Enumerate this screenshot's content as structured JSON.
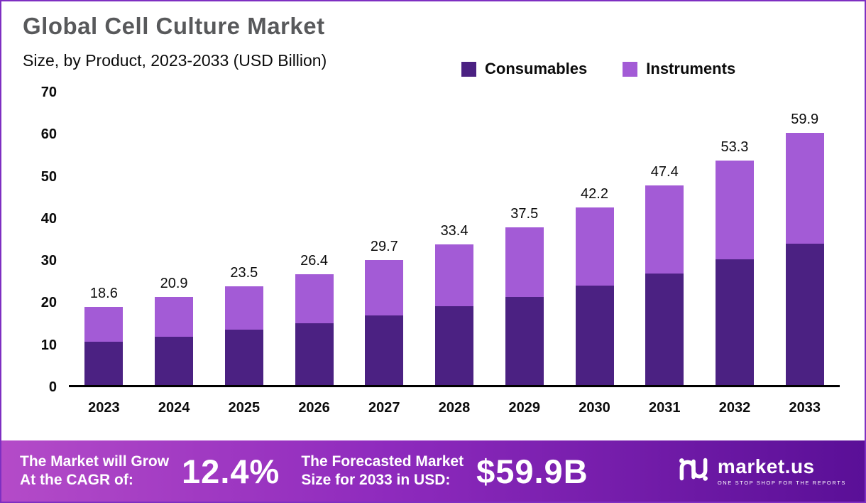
{
  "header": {
    "title": "Global Cell Culture Market",
    "subtitle": "Size, by Product, 2023-2033 (USD Billion)"
  },
  "chart_data": {
    "type": "bar",
    "stacked": true,
    "categories": [
      "2023",
      "2024",
      "2025",
      "2026",
      "2027",
      "2028",
      "2029",
      "2030",
      "2031",
      "2032",
      "2033"
    ],
    "series": [
      {
        "name": "Consumables",
        "color": "#4b2182",
        "values": [
          10.3,
          11.5,
          13.1,
          14.7,
          16.5,
          18.7,
          20.9,
          23.6,
          26.5,
          29.8,
          33.6
        ]
      },
      {
        "name": "Instruments",
        "color": "#a35bd6",
        "values": [
          8.3,
          9.4,
          10.4,
          11.7,
          13.2,
          14.7,
          16.6,
          18.6,
          20.9,
          23.5,
          26.3
        ]
      }
    ],
    "totals": [
      18.6,
      20.9,
      23.5,
      26.4,
      29.7,
      33.4,
      37.5,
      42.2,
      47.4,
      53.3,
      59.9
    ],
    "title": "Global Cell Culture Market",
    "xlabel": "",
    "ylabel": "",
    "ylim": [
      0,
      70
    ],
    "yticks": [
      0,
      10,
      20,
      30,
      40,
      50,
      60,
      70
    ],
    "grid": false,
    "legend_position": "top-right",
    "value_labels": "total above each stacked bar"
  },
  "banner": {
    "cagr_label_line1": "The Market will Grow",
    "cagr_label_line2": "At the CAGR of:",
    "cagr_value": "12.4%",
    "forecast_label_line1": "The Forecasted Market",
    "forecast_label_line2": "Size for 2033 in USD:",
    "forecast_value": "$59.9B",
    "brand": "market.us",
    "brand_tagline": "ONE STOP SHOP FOR THE REPORTS"
  },
  "colors": {
    "title_text": "#58595b",
    "consumables": "#4b2182",
    "instruments": "#a35bd6",
    "banner_gradient_start": "#b44bc8",
    "banner_gradient_mid": "#8e2abd",
    "banner_gradient_end": "#5a0f97",
    "frame_border": "#7e2fc2",
    "axis_line": "#000000"
  }
}
